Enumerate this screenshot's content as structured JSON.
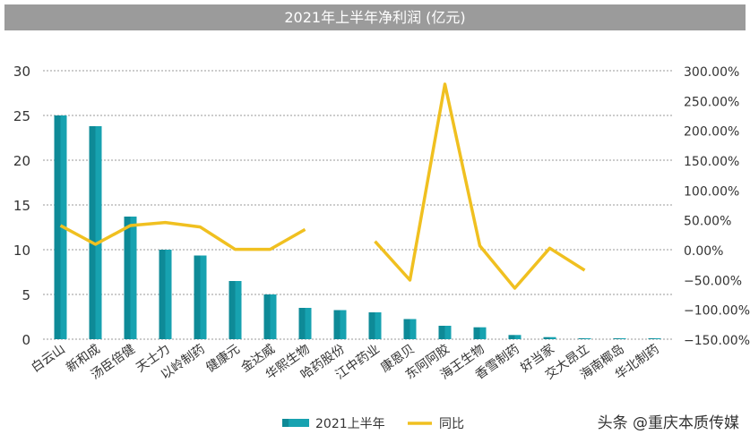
{
  "chart_data": {
    "type": "bar+line",
    "title": "2021年上半年净利润 (亿元)",
    "categories": [
      "白云山",
      "新和成",
      "汤臣倍健",
      "天士力",
      "以岭制药",
      "健康元",
      "金达威",
      "华熙生物",
      "哈药股份",
      "江中药业",
      "康恩贝",
      "东阿阿胶",
      "海王生物",
      "香雪制药",
      "好当家",
      "交大昂立",
      "海南椰岛",
      "华北制药"
    ],
    "series": [
      {
        "name": "2021上半年",
        "type": "bar",
        "axis": "left",
        "values": [
          25.0,
          23.8,
          13.7,
          10.0,
          9.35,
          6.5,
          5.0,
          3.5,
          3.25,
          3.0,
          2.25,
          1.5,
          1.33,
          0.47,
          0.23,
          0.1,
          0.1,
          0.1
        ]
      },
      {
        "name": "同比",
        "type": "line",
        "axis": "right",
        "values": [
          40.5,
          9,
          40.5,
          45.5,
          38,
          0.5,
          0.5,
          34,
          null,
          14,
          -51,
          277.5,
          6.5,
          -64.5,
          2.5,
          -34.5,
          null,
          null
        ]
      }
    ],
    "left_axis": {
      "ylim": [
        0,
        30
      ],
      "ticks": [
        "0",
        "5",
        "10",
        "15",
        "20",
        "25",
        "30"
      ]
    },
    "right_axis": {
      "ylim": [
        -150,
        300
      ],
      "ticks": [
        "-150.00%",
        "-100.00%",
        "-50.00%",
        "0.00%",
        "50.00%",
        "100.00%",
        "150.00%",
        "200.00%",
        "250.00%",
        "300.00%"
      ]
    },
    "grid": true,
    "legend": "bottom",
    "colors": {
      "bar": "#17a2b0",
      "bar_dark": "#0e8a97",
      "line": "#f0c020"
    }
  },
  "watermark": "头条 @重庆本质传媒"
}
